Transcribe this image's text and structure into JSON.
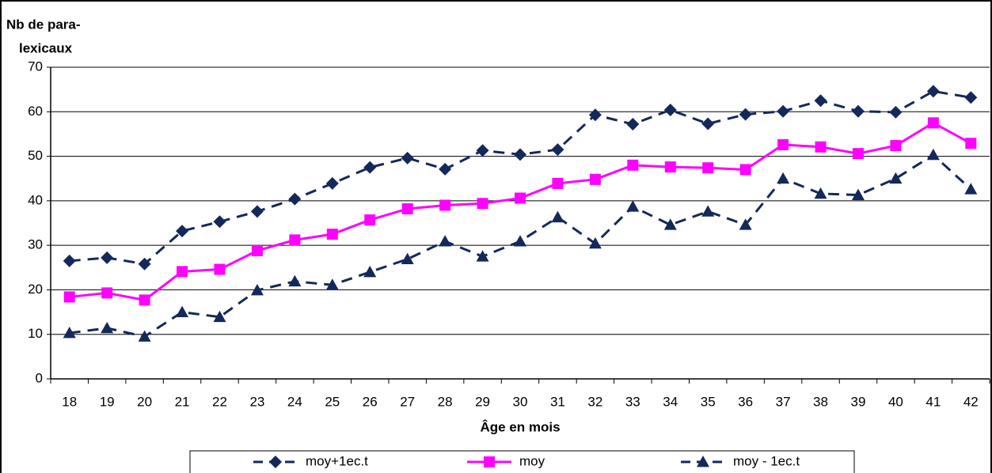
{
  "chart_data": {
    "type": "line",
    "y_axis_label": [
      "Nb de para-",
      "lexicaux"
    ],
    "x_axis_label": "Âge en mois",
    "categories": [
      "18",
      "19",
      "20",
      "21",
      "22",
      "23",
      "24",
      "25",
      "26",
      "27",
      "28",
      "29",
      "30",
      "31",
      "32",
      "33",
      "34",
      "35",
      "36",
      "37",
      "38",
      "39",
      "40",
      "41",
      "42"
    ],
    "series": [
      {
        "name": "moy+1ec.t",
        "color": "#14285a",
        "marker": "diamond",
        "dashed": true,
        "values": [
          26.5,
          27.2,
          25.8,
          33.2,
          35.3,
          37.6,
          40.4,
          43.9,
          47.5,
          49.6,
          47.1,
          51.3,
          50.4,
          51.5,
          59.3,
          57.2,
          60.4,
          57.3,
          59.4,
          60.1,
          62.5,
          60.1,
          59.9,
          64.6,
          63.2
        ]
      },
      {
        "name": "moy",
        "color": "#ff00ff",
        "marker": "square",
        "dashed": false,
        "values": [
          18.4,
          19.3,
          17.7,
          24.1,
          24.6,
          28.8,
          31.2,
          32.5,
          35.7,
          38.2,
          39.0,
          39.4,
          40.6,
          43.9,
          44.8,
          48.0,
          47.6,
          47.4,
          47.0,
          52.6,
          52.1,
          50.6,
          52.4,
          57.5,
          52.9
        ]
      },
      {
        "name": "moy - 1ec.t",
        "color": "#14285a",
        "marker": "triangle",
        "dashed": true,
        "values": [
          10.3,
          11.4,
          9.5,
          15.0,
          13.9,
          19.9,
          21.9,
          21.1,
          24.0,
          26.9,
          30.9,
          27.5,
          30.9,
          36.3,
          30.4,
          38.7,
          34.6,
          37.6,
          34.6,
          45.0,
          41.6,
          41.3,
          45.0,
          50.3,
          42.6
        ]
      }
    ],
    "ylim": [
      0,
      70
    ],
    "yticks": [
      0,
      10,
      20,
      30,
      40,
      50,
      60,
      70
    ],
    "grid": true,
    "legend": "bottom"
  }
}
